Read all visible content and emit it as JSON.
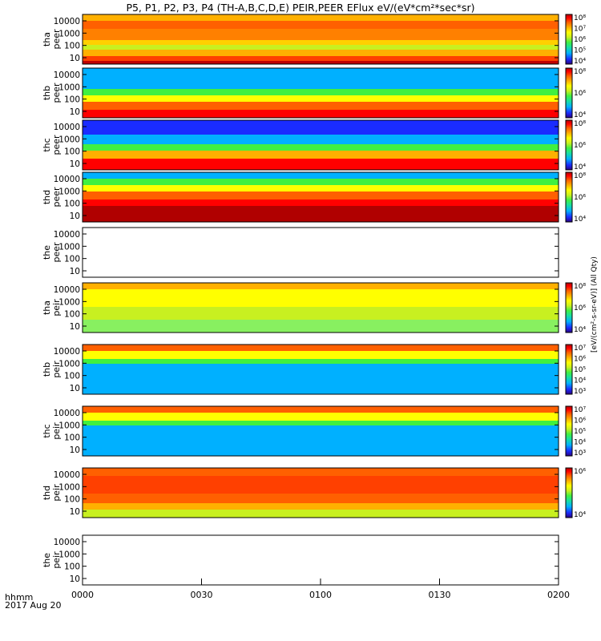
{
  "title": "P5, P1, P2, P3, P4 (TH-A,B,C,D,E) PEIR,PEER EFlux eV/(eV*cm²*sec*sr)",
  "chart_data": {
    "type": "heatmap",
    "title": "P5, P1, P2, P3, P4 (TH-A,B,C,D,E) PEIR,PEER EFlux eV/(eV*cm²*sec*sr)",
    "x_ticks": [
      "0000",
      "0030",
      "0100",
      "0130",
      "0200"
    ],
    "x_label_rows": [
      "hhmm",
      "2017 Aug 20"
    ],
    "y_ticks": [
      "10000",
      "1000",
      "100",
      "10"
    ],
    "y_scale": "log",
    "panels": [
      {
        "probe": "tha",
        "species": "peer",
        "ylabel": "tha peer",
        "colorbar_ticks": [
          "10⁸",
          "10⁷",
          "10⁶",
          "10⁵",
          "10⁴"
        ],
        "has_data": true
      },
      {
        "probe": "thb",
        "species": "peer",
        "ylabel": "thb peer",
        "colorbar_ticks": [
          "10⁸",
          "10⁶",
          "10⁴"
        ],
        "has_data": true
      },
      {
        "probe": "thc",
        "species": "peer",
        "ylabel": "thc peer",
        "colorbar_ticks": [
          "10⁸",
          "10⁶",
          "10⁴"
        ],
        "has_data": true
      },
      {
        "probe": "thd",
        "species": "peer",
        "ylabel": "thd peer",
        "colorbar_ticks": [
          "10⁸",
          "10⁶",
          "10⁴"
        ],
        "has_data": true
      },
      {
        "probe": "the",
        "species": "peer",
        "ylabel": "the peer",
        "colorbar_ticks": [],
        "has_data": false
      },
      {
        "probe": "tha",
        "species": "peir",
        "ylabel": "tha peir",
        "colorbar_ticks": [
          "10⁸",
          "10⁶",
          "10⁴"
        ],
        "has_data": true
      },
      {
        "probe": "thb",
        "species": "peir",
        "ylabel": "thb peir",
        "colorbar_ticks": [
          "10⁷",
          "10⁶",
          "10⁵",
          "10⁴",
          "10³"
        ],
        "has_data": true
      },
      {
        "probe": "thc",
        "species": "peir",
        "ylabel": "thc peir",
        "colorbar_ticks": [
          "10⁷",
          "10⁶",
          "10⁵",
          "10⁴",
          "10³"
        ],
        "has_data": true
      },
      {
        "probe": "thd",
        "species": "peir",
        "ylabel": "thd peir",
        "colorbar_ticks": [
          "10⁶",
          "10⁴"
        ],
        "has_data": true
      },
      {
        "probe": "the",
        "species": "peir",
        "ylabel": "the peir",
        "colorbar_ticks": [],
        "has_data": false
      }
    ],
    "colorbar_unit_label": "[eV/(cm²-s-sr-eV)] (All Qty)",
    "colormap": [
      "#2b0080",
      "#1a2cff",
      "#00b0ff",
      "#18e0a0",
      "#40f040",
      "#c8f020",
      "#ffff00",
      "#ffb000",
      "#ff6000",
      "#ff0000",
      "#b00000"
    ]
  },
  "footer": {
    "row1": "hhmm",
    "row2": "2017 Aug 20"
  }
}
